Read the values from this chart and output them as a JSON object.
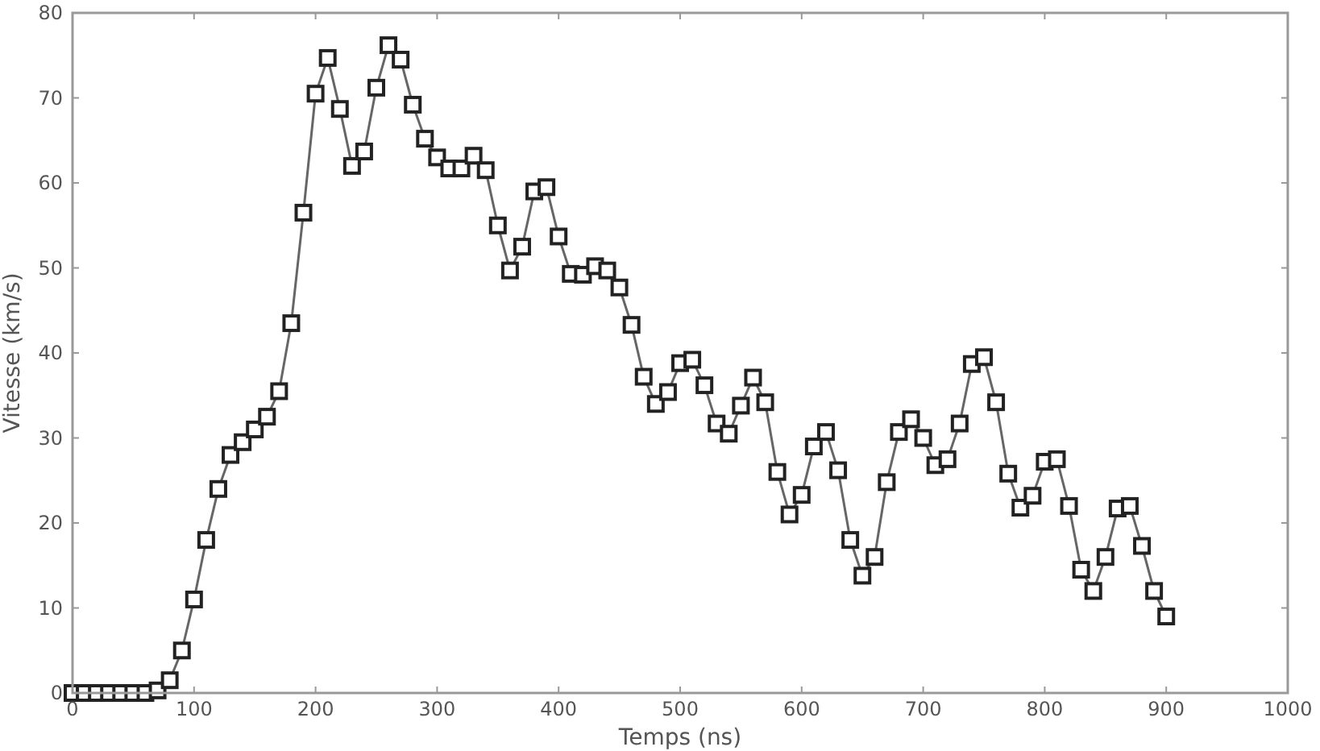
{
  "chart_data": {
    "type": "line",
    "xlabel": "Temps (ns)",
    "ylabel": "Vitesse (km/s)",
    "x": [
      0,
      10,
      20,
      30,
      40,
      50,
      60,
      70,
      80,
      90,
      100,
      110,
      120,
      130,
      140,
      150,
      160,
      170,
      180,
      190,
      200,
      210,
      220,
      230,
      240,
      250,
      260,
      270,
      280,
      290,
      300,
      310,
      320,
      330,
      340,
      350,
      360,
      370,
      380,
      390,
      400,
      410,
      420,
      430,
      440,
      450,
      460,
      470,
      480,
      490,
      500,
      510,
      520,
      530,
      540,
      550,
      560,
      570,
      580,
      590,
      600,
      610,
      620,
      630,
      640,
      650,
      660,
      670,
      680,
      690,
      700,
      710,
      720,
      730,
      740,
      750,
      760,
      770,
      780,
      790,
      800,
      810,
      820,
      830,
      840,
      850,
      860,
      870,
      880,
      890,
      900
    ],
    "series": [
      {
        "color": "#222222",
        "values": [
          0,
          0,
          0,
          0,
          0,
          0,
          0,
          0.3,
          1.5,
          5,
          11,
          18,
          24,
          28,
          29.5,
          31,
          32.5,
          35.5,
          43.5,
          56.5,
          70.5,
          74.7,
          68.7,
          62,
          63.7,
          71.2,
          76.2,
          74.5,
          69.2,
          65.2,
          63,
          61.7,
          61.7,
          63.2,
          61.5,
          55,
          49.7,
          52.5,
          59,
          59.5,
          53.7,
          49.3,
          49.2,
          50.2,
          49.7,
          47.7,
          43.3,
          37.2,
          34,
          35.4,
          38.8,
          39.2,
          36.2,
          31.7,
          30.5,
          33.8,
          37.1,
          34.2,
          26,
          21,
          23.3,
          29,
          30.7,
          26.2,
          18,
          13.8,
          16,
          24.8,
          30.7,
          32.2,
          30,
          26.8,
          27.5,
          31.7,
          38.7,
          39.5,
          34.2,
          25.8,
          21.8,
          23.2,
          27.2,
          27.5,
          22,
          14.5,
          12,
          16,
          21.7,
          22,
          17.3,
          12,
          9
        ]
      }
    ],
    "xlim": [
      0,
      1000
    ],
    "xticks": [
      0,
      100,
      200,
      300,
      400,
      500,
      600,
      700,
      800,
      900,
      1000
    ],
    "ylim": [
      0,
      80
    ],
    "yticks": [
      0,
      10,
      20,
      30,
      40,
      50,
      60,
      70,
      80
    ],
    "grid": false,
    "marker": "square",
    "line_style": "solid"
  }
}
